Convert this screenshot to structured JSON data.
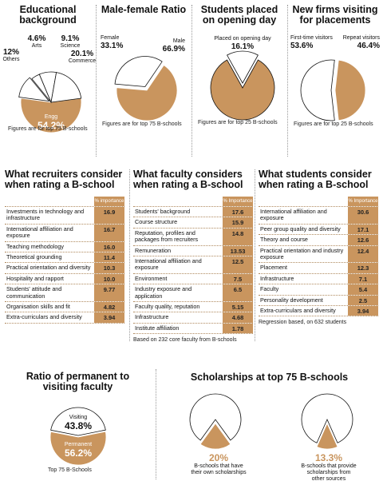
{
  "chart_data": [
    {
      "type": "pie",
      "title": "Educational background",
      "categories": [
        "Engg",
        "Others",
        "Arts",
        "Science",
        "Commerce"
      ],
      "values": [
        54.2,
        12,
        4.6,
        9.1,
        20.1
      ],
      "value_labels": [
        "54.2%",
        "12%",
        "4.6%",
        "9.1%",
        "20.1%"
      ],
      "colors": [
        "#c9955e",
        "#ffffff",
        "#ffffff",
        "#ffffff",
        "#ffffff"
      ],
      "note": "Figures are for top 75 B-schools"
    },
    {
      "type": "pie",
      "title": "Male-female Ratio",
      "categories": [
        "Female",
        "Male"
      ],
      "values": [
        33.1,
        66.9
      ],
      "value_labels": [
        "33.1%",
        "66.9%"
      ],
      "colors": [
        "#ffffff",
        "#c9955e"
      ],
      "note": "Figures are for top 75 B-schools"
    },
    {
      "type": "pie",
      "title": "Students placed on opening day",
      "categories": [
        "Placed on opening day"
      ],
      "values": [
        16.1
      ],
      "value_labels": [
        "16.1%"
      ],
      "colors": [
        "#ffffff"
      ],
      "remainder_color": "#c9955e",
      "note": "Figures are for top 25 B-schools"
    },
    {
      "type": "pie",
      "title": "New firms visiting for placements",
      "categories": [
        "First-time visitors",
        "Repeat visitors"
      ],
      "values": [
        53.6,
        46.4
      ],
      "value_labels": [
        "53.6%",
        "46.4%"
      ],
      "colors": [
        "#ffffff",
        "#c9955e"
      ],
      "note": "Figures are for top 25 B-schools"
    },
    {
      "type": "pie",
      "title": "Ratio of permanent to visiting faculty",
      "categories": [
        "Visiting",
        "Permanent"
      ],
      "values": [
        43.8,
        56.2
      ],
      "value_labels": [
        "43.8%",
        "56.2%"
      ],
      "colors": [
        "#ffffff",
        "#c9955e"
      ],
      "note": "Top 75 B-Schools"
    },
    {
      "type": "pie",
      "categories": [
        "B-schools that have their own scholarships"
      ],
      "values": [
        20
      ],
      "value_labels": [
        "20%"
      ],
      "colors": [
        "#c9955e"
      ],
      "remainder_color": "#ffffff"
    },
    {
      "type": "pie",
      "categories": [
        "B-schools that provide scholarships from other sources"
      ],
      "values": [
        13.3
      ],
      "value_labels": [
        "13.3%"
      ],
      "colors": [
        "#c9955e"
      ],
      "remainder_color": "#ffffff"
    }
  ],
  "scholarships_title": "Scholarships at top 75 B-schools",
  "tables": [
    {
      "title": "What recruiters consider when rating a B-school",
      "column": "% importance",
      "rows": [
        [
          "Investments in technology and infrastructure",
          "16.9"
        ],
        [
          "International affiliation and exposure",
          "16.7"
        ],
        [
          "Teaching methodology",
          "16.0"
        ],
        [
          "Theoretical grounding",
          "11.4"
        ],
        [
          "Practical orientation and diversity",
          "10.3"
        ],
        [
          "Hospitality and rapport",
          "10.0"
        ],
        [
          "Students' attitude and communication",
          "9.77"
        ],
        [
          "Organisation skills and fit",
          "4.82"
        ],
        [
          "Extra-curriculars and diversity",
          "3.94"
        ]
      ]
    },
    {
      "title": "What faculty considers when rating a B-school",
      "column": "% Importance",
      "rows": [
        [
          "Students' background",
          "17.6"
        ],
        [
          "Course structure",
          "15.9"
        ],
        [
          "Reputation, profiles and packages from recruiters",
          "14.8"
        ],
        [
          "Remuneration",
          "13.53"
        ],
        [
          "International affiliation and exposure",
          "12.5"
        ],
        [
          "Environment",
          "7.5"
        ],
        [
          "Industry exposure and application",
          "6.5"
        ],
        [
          "Faculty quality, reputation",
          "5.15"
        ],
        [
          "Infrastructure",
          "4.68"
        ],
        [
          "Institute affiliation",
          "1.78"
        ]
      ],
      "note": "Based on 232 core faculty from B-schools"
    },
    {
      "title": "What students consider when rating a B-school",
      "column": "% Importance",
      "rows": [
        [
          "International affiliation and exposure",
          "30.6"
        ],
        [
          "Peer group quality and diversity",
          "17.1"
        ],
        [
          "Theory and course",
          "12.6"
        ],
        [
          "Practical orientation and industry exposure",
          "12.4"
        ],
        [
          "Placement",
          "12.3"
        ],
        [
          "Infrastructure",
          "7.1"
        ],
        [
          "Faculty",
          "5.4"
        ],
        [
          "Personality development",
          "2.5"
        ],
        [
          "Extra-curriculars and diversity",
          "3.94"
        ]
      ],
      "note": "Regression based, on 632 students"
    }
  ]
}
